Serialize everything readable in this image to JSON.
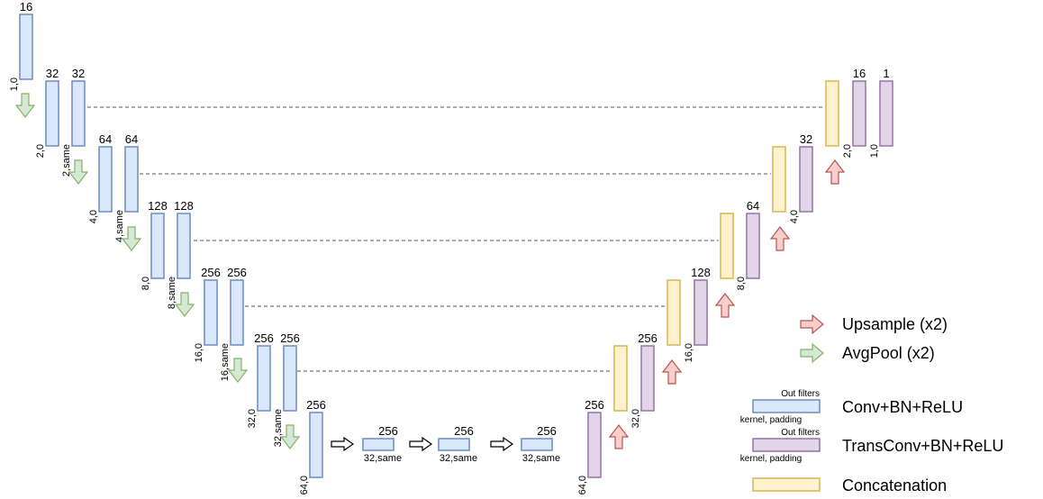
{
  "encoder": [
    {
      "filters": "16",
      "params": "1,0"
    },
    {
      "filters": "32",
      "params": "2,0"
    },
    {
      "filters": "32",
      "params": "2,same"
    },
    {
      "filters": "64",
      "params": "4,0"
    },
    {
      "filters": "64",
      "params": "4,same"
    },
    {
      "filters": "128",
      "params": "8,0"
    },
    {
      "filters": "128",
      "params": "8,same"
    },
    {
      "filters": "256",
      "params": "16,0"
    },
    {
      "filters": "256",
      "params": "16,same"
    },
    {
      "filters": "256",
      "params": "32,0"
    },
    {
      "filters": "256",
      "params": "32,same"
    },
    {
      "filters": "256",
      "params": "64,0"
    }
  ],
  "bottleneck": [
    {
      "filters": "256",
      "params": "32,same"
    },
    {
      "filters": "256",
      "params": "32,same"
    },
    {
      "filters": "256",
      "params": "32,same"
    }
  ],
  "decoder": [
    {
      "filters": "256",
      "params": "64,0"
    },
    {
      "filters": "256",
      "params": "32,0"
    },
    {
      "filters": "128",
      "params": "16,0"
    },
    {
      "filters": "64",
      "params": "8,0"
    },
    {
      "filters": "32",
      "params": "4,0"
    },
    {
      "filters": "16",
      "params": "2,0"
    },
    {
      "filters": "1",
      "params": "1,0"
    }
  ],
  "legend": {
    "upsample": "Upsample (x2)",
    "avgpool": "AvgPool (x2)",
    "conv": {
      "out": "Out filters",
      "kernel": "kernel, padding",
      "label": "Conv+BN+ReLU"
    },
    "transconv": {
      "out": "Out filters",
      "kernel": "kernel, padding",
      "label": "TransConv+BN+ReLU"
    },
    "concat": "Concatenation"
  }
}
